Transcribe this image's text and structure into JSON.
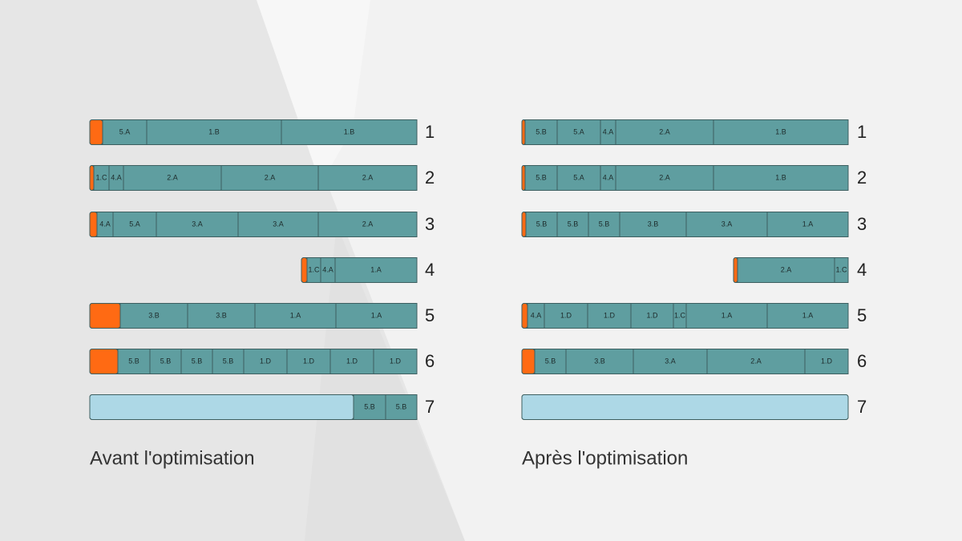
{
  "panels": [
    {
      "caption": "Avant l'optimisation",
      "rows": [
        {
          "number": "1",
          "segments": [
            "5.A",
            "1.B",
            "1.B"
          ]
        },
        {
          "number": "2",
          "segments": [
            "1.C",
            "4.A",
            "2.A",
            "2.A",
            "2.A"
          ]
        },
        {
          "number": "3",
          "segments": [
            "4.A",
            "5.A",
            "3.A",
            "3.A",
            "2.A"
          ]
        },
        {
          "number": "4",
          "segments": [
            "1.C",
            "4.A",
            "1.A"
          ]
        },
        {
          "number": "5",
          "segments": [
            "3.B",
            "3.B",
            "1.A",
            "1.A"
          ]
        },
        {
          "number": "6",
          "segments": [
            "5.B",
            "5.B",
            "5.B",
            "5.B",
            "1.D",
            "1.D",
            "1.D",
            "1.D"
          ]
        },
        {
          "number": "7",
          "segments": [
            "5.B",
            "5.B"
          ]
        }
      ]
    },
    {
      "caption": "Après l'optimisation",
      "rows": [
        {
          "number": "1",
          "segments": [
            "5.B",
            "5.A",
            "4.A",
            "2.A",
            "1.B"
          ]
        },
        {
          "number": "2",
          "segments": [
            "5.B",
            "5.A",
            "4.A",
            "2.A",
            "1.B"
          ]
        },
        {
          "number": "3",
          "segments": [
            "5.B",
            "5.B",
            "5.B",
            "3.B",
            "3.A",
            "1.A"
          ]
        },
        {
          "number": "4",
          "segments": [
            "2.A",
            "1.C"
          ]
        },
        {
          "number": "5",
          "segments": [
            "4.A",
            "1.D",
            "1.D",
            "1.D",
            "1.C",
            "1.A",
            "1.A"
          ]
        },
        {
          "number": "6",
          "segments": [
            "5.B",
            "3.B",
            "3.A",
            "2.A",
            "1.D"
          ]
        },
        {
          "number": "7",
          "segments": []
        }
      ]
    }
  ]
}
